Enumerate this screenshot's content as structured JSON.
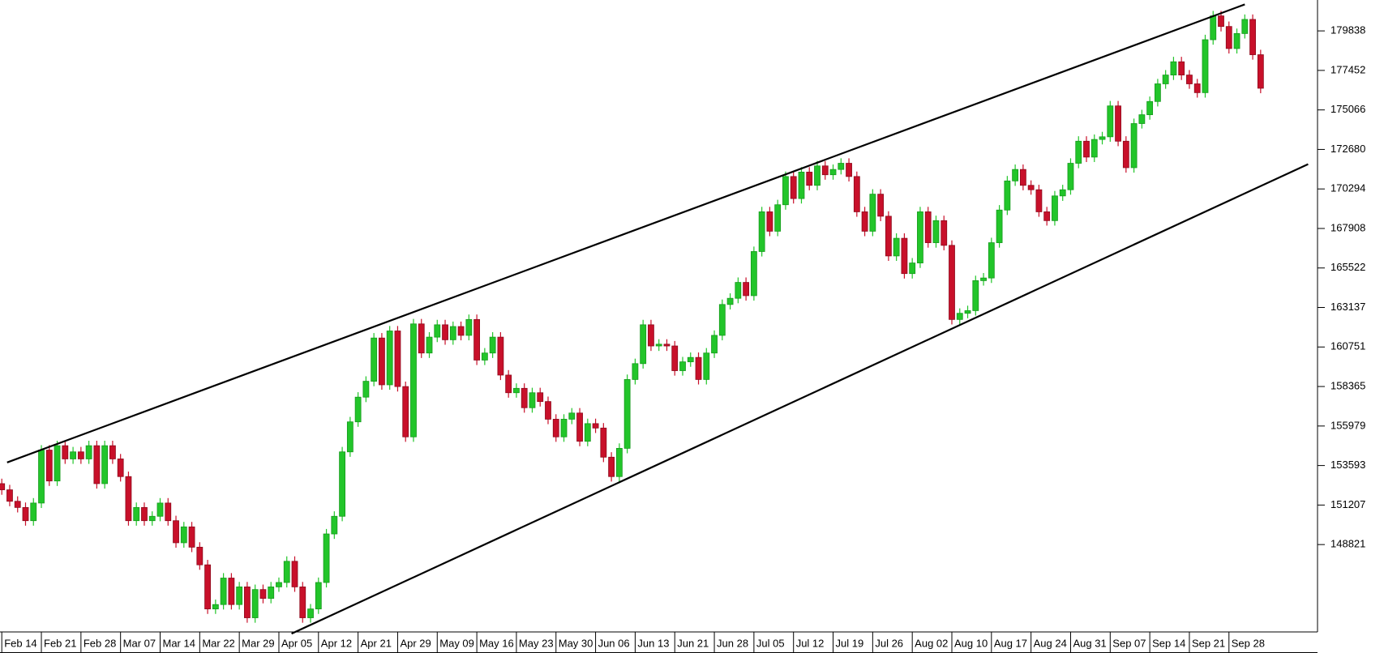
{
  "chart_data": {
    "type": "candlestick",
    "categories": [
      "Feb 14",
      null,
      null,
      null,
      null,
      "Feb 21",
      null,
      null,
      null,
      null,
      "Feb 28",
      null,
      null,
      null,
      null,
      "Mar 07",
      null,
      null,
      null,
      null,
      "Mar 14",
      null,
      null,
      null,
      null,
      "Mar 22",
      null,
      null,
      null,
      null,
      "Mar 29",
      null,
      null,
      null,
      null,
      "Apr 05",
      null,
      null,
      null,
      null,
      "Apr 12",
      null,
      null,
      null,
      null,
      "Apr 21",
      null,
      null,
      null,
      null,
      "Apr 29",
      null,
      null,
      null,
      null,
      "May 09",
      null,
      null,
      null,
      null,
      "May 16",
      null,
      null,
      null,
      null,
      "May 23",
      null,
      null,
      null,
      null,
      "May 30",
      null,
      null,
      null,
      null,
      "Jun 06",
      null,
      null,
      null,
      null,
      "Jun 13",
      null,
      null,
      null,
      null,
      "Jun 21",
      null,
      null,
      null,
      null,
      "Jun 28",
      null,
      null,
      null,
      null,
      "Jul 05",
      null,
      null,
      null,
      null,
      "Jul 12",
      null,
      null,
      null,
      null,
      "Jul 19",
      null,
      null,
      null,
      null,
      "Jul 26",
      null,
      null,
      null,
      null,
      "Aug 02",
      null,
      null,
      null,
      null,
      "Aug 10",
      null,
      null,
      null,
      null,
      "Aug 17",
      null,
      null,
      null,
      null,
      "Aug 24",
      null,
      null,
      null,
      null,
      "Aug 31",
      null,
      null,
      null,
      null,
      "Sep 07",
      null,
      null,
      null,
      null,
      "Sep 14",
      null,
      null,
      null,
      null,
      "Sep 21",
      null,
      null,
      null,
      null,
      "Sep 28",
      null,
      null,
      null,
      null
    ],
    "open": [
      152500,
      152127,
      151434,
      151061,
      150262,
      151328,
      154525,
      152660,
      154791,
      153992,
      154418,
      153992,
      154791,
      152500,
      154791,
      153992,
      152926,
      150262,
      151061,
      150262,
      150528,
      151328,
      150262,
      148930,
      149889,
      148663,
      147597,
      144933,
      145199,
      146798,
      145199,
      146265,
      144400,
      146105,
      145572,
      146265,
      146531,
      147810,
      146265,
      144400,
      144933,
      146531,
      149463,
      150528,
      154418,
      156230,
      157722,
      158681,
      161293,
      158468,
      161719,
      158362,
      155324,
      162145,
      160387,
      161346,
      162092,
      161186,
      161986,
      161453,
      162412,
      159960,
      160387,
      161346,
      159055,
      157989,
      158255,
      157083,
      157989,
      157456,
      156390,
      155324,
      156390,
      156763,
      155058,
      156124,
      155857,
      154098,
      152926,
      154631,
      158788,
      159747,
      162092,
      160813,
      160920,
      160813,
      159321,
      159854,
      160120,
      158788,
      160387,
      161453,
      163318,
      163691,
      164650,
      163851,
      166515,
      168913,
      167741,
      169340,
      171045,
      169713,
      171311,
      170512,
      171685,
      171151,
      171471,
      171844,
      171045,
      168913,
      167741,
      169979,
      168647,
      166249,
      167315,
      165183,
      165823,
      168913,
      167048,
      168381,
      166888,
      162412,
      162785,
      162945,
      164757,
      164917,
      167048,
      169020,
      170778,
      171471,
      170512,
      170246,
      168913,
      168381,
      169873,
      170246,
      171844,
      173177,
      172218,
      173283,
      173443,
      175308,
      173177,
      171578,
      174242,
      174775,
      175575,
      176640,
      177173,
      177973,
      177173,
      176640,
      176108,
      179305,
      180744,
      180104,
      178772,
      179678,
      180531,
      178399
    ],
    "high": [
      152800,
      152427,
      151734,
      151361,
      151628,
      154825,
      154825,
      155091,
      155091,
      154718,
      154718,
      155091,
      155091,
      155091,
      155091,
      154292,
      153226,
      151361,
      151361,
      150828,
      151628,
      151628,
      150562,
      150189,
      150189,
      148963,
      147897,
      145499,
      147098,
      147098,
      146565,
      146565,
      146405,
      146405,
      146565,
      146831,
      148110,
      148110,
      146565,
      145233,
      146831,
      149763,
      150828,
      154718,
      156530,
      158022,
      158981,
      161593,
      161593,
      162019,
      162019,
      158662,
      162445,
      162445,
      161646,
      162392,
      162392,
      162286,
      162286,
      162712,
      162712,
      160687,
      161646,
      161646,
      159355,
      158555,
      158555,
      158289,
      158289,
      157756,
      156690,
      156690,
      157063,
      157063,
      156424,
      156424,
      156157,
      154398,
      154931,
      159088,
      160047,
      162392,
      162392,
      161220,
      161220,
      161113,
      160154,
      160420,
      160420,
      160687,
      161753,
      163618,
      163991,
      164950,
      164950,
      166815,
      169213,
      169213,
      169640,
      171345,
      171345,
      171611,
      171611,
      171985,
      171985,
      171771,
      172144,
      172144,
      171345,
      169213,
      170279,
      170279,
      168947,
      167615,
      167615,
      166123,
      169213,
      169213,
      168681,
      168681,
      167188,
      163085,
      163245,
      165057,
      165217,
      167348,
      169320,
      171078,
      171771,
      171771,
      170812,
      170546,
      169213,
      170173,
      170546,
      172144,
      173477,
      173477,
      173583,
      173743,
      175608,
      175608,
      173477,
      174542,
      175075,
      175875,
      176940,
      177473,
      178273,
      178273,
      177473,
      176940,
      179605,
      181044,
      181044,
      180404,
      179978,
      180831,
      180831,
      178699
    ],
    "low": [
      151827,
      151134,
      150761,
      149962,
      149962,
      151028,
      152360,
      152360,
      153692,
      153692,
      153692,
      153692,
      152200,
      152200,
      153692,
      152626,
      149962,
      149962,
      149962,
      149962,
      150228,
      149962,
      148630,
      148630,
      148363,
      147297,
      144633,
      144633,
      144899,
      144899,
      144899,
      144100,
      144100,
      145272,
      145272,
      145965,
      146231,
      145965,
      144100,
      144100,
      144633,
      146231,
      149163,
      150228,
      154118,
      155930,
      157422,
      158381,
      158168,
      158168,
      158062,
      155024,
      155024,
      160087,
      160087,
      161046,
      160886,
      160886,
      161153,
      161153,
      159660,
      159660,
      160087,
      158755,
      157689,
      157689,
      156783,
      156783,
      157156,
      156090,
      155024,
      155024,
      156090,
      154758,
      154758,
      155557,
      153798,
      152626,
      152626,
      154331,
      158488,
      159447,
      160513,
      160513,
      160513,
      159021,
      159021,
      159554,
      158488,
      158488,
      160087,
      161153,
      163018,
      163391,
      163551,
      163551,
      166215,
      167441,
      167441,
      169040,
      169413,
      169413,
      170212,
      170212,
      170851,
      170851,
      171171,
      170745,
      168613,
      167441,
      167441,
      168347,
      165949,
      165949,
      164883,
      164883,
      165523,
      166748,
      166748,
      166588,
      162112,
      162112,
      162485,
      162645,
      164457,
      164617,
      166748,
      168720,
      170478,
      170212,
      169946,
      168613,
      168081,
      168081,
      169573,
      169946,
      171544,
      171918,
      171918,
      172983,
      173143,
      172877,
      171278,
      171278,
      173942,
      174475,
      175275,
      176340,
      176873,
      176873,
      176340,
      175808,
      175808,
      179005,
      179804,
      178472,
      178472,
      179378,
      178099,
      176074
    ],
    "close": [
      152127,
      151434,
      151061,
      150262,
      151328,
      154525,
      152660,
      154791,
      153992,
      154418,
      153992,
      154791,
      152500,
      154791,
      153992,
      152926,
      150262,
      151061,
      150262,
      150528,
      151328,
      150262,
      148930,
      149889,
      148663,
      147597,
      144933,
      145199,
      146798,
      145199,
      146265,
      144400,
      146105,
      145572,
      146265,
      146531,
      147810,
      146265,
      144400,
      144933,
      146531,
      149463,
      150528,
      154418,
      156230,
      157722,
      158681,
      161293,
      158468,
      161719,
      158362,
      155324,
      162145,
      160387,
      161346,
      162092,
      161186,
      161986,
      161453,
      162412,
      159960,
      160387,
      161346,
      159055,
      157989,
      158255,
      157083,
      157989,
      157456,
      156390,
      155324,
      156390,
      156763,
      155058,
      156124,
      155857,
      154098,
      152926,
      154631,
      158788,
      159747,
      162092,
      160813,
      160920,
      160813,
      159321,
      159854,
      160120,
      158788,
      160387,
      161453,
      163318,
      163691,
      164650,
      163851,
      166515,
      168913,
      167741,
      169340,
      171045,
      169713,
      171311,
      170512,
      171685,
      171151,
      171471,
      171844,
      171045,
      168913,
      167741,
      169979,
      168647,
      166249,
      167315,
      165183,
      165823,
      168913,
      167048,
      168381,
      166888,
      162412,
      162785,
      162945,
      164757,
      164917,
      167048,
      169020,
      170778,
      171471,
      170512,
      170246,
      168913,
      168381,
      169873,
      170246,
      171844,
      173177,
      172218,
      173283,
      173443,
      175308,
      173177,
      171578,
      174242,
      174775,
      175575,
      176640,
      177173,
      177973,
      177173,
      176640,
      176108,
      179305,
      180744,
      180104,
      178772,
      179678,
      180531,
      178399,
      176374
    ],
    "up_color": "#22c52a",
    "down_color": "#c8102a",
    "trendlines": [
      {
        "x": [
          0.67,
          157
        ],
        "y": [
          153779,
          181437
        ]
      },
      {
        "x": [
          36.6,
          165
        ],
        "y": [
          143441,
          171791
        ]
      }
    ],
    "ylim": [
      143545,
      181703
    ],
    "yticks": [
      148821,
      151207,
      153593,
      155979,
      158365,
      160751,
      163137,
      165522,
      167908,
      170294,
      172680,
      175066,
      177452,
      179838
    ]
  }
}
